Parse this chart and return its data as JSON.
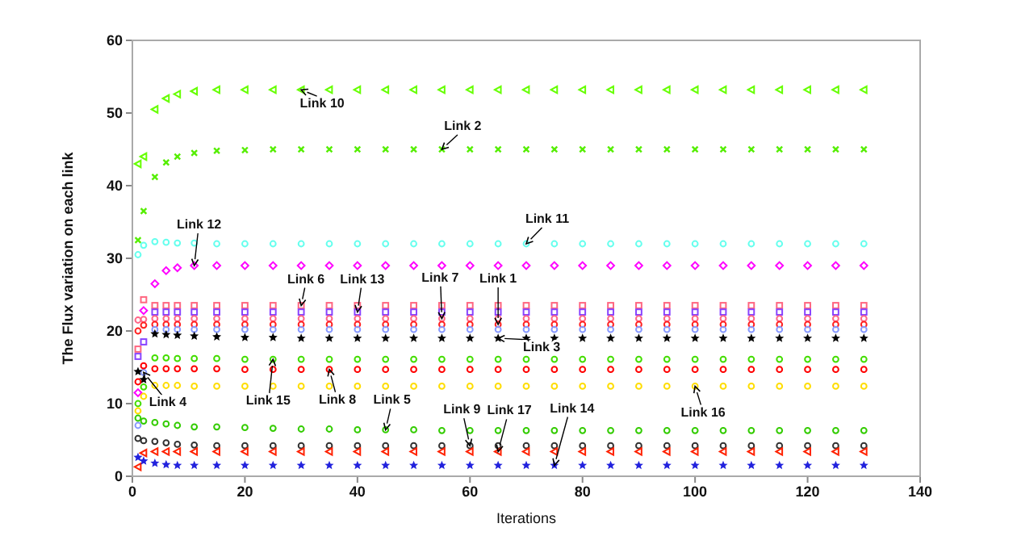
{
  "chart_data": {
    "type": "scatter",
    "xlabel": "Iterations",
    "ylabel": "The Flux variation on each link",
    "x": [
      1,
      2,
      4,
      6,
      8,
      11,
      15,
      20,
      25,
      30,
      35,
      40,
      45,
      50,
      55,
      60,
      65,
      70,
      75,
      80,
      85,
      90,
      95,
      100,
      105,
      110,
      115,
      120,
      125,
      130
    ],
    "xlim": [
      0,
      140
    ],
    "xticks": [
      0,
      20,
      40,
      60,
      80,
      100,
      120,
      140
    ],
    "ylim": [
      0,
      60
    ],
    "yticks": [
      0,
      10,
      20,
      30,
      40,
      50,
      60
    ],
    "grid": false,
    "series": [
      {
        "color": "#66ff00",
        "marker": "triangle",
        "values": [
          43,
          44,
          50.5,
          52,
          52.6,
          53,
          53.2,
          53.2,
          53.2,
          53.2,
          53.2,
          53.2,
          53.2,
          53.2,
          53.2,
          53.2,
          53.2,
          53.2,
          53.2,
          53.2,
          53.2,
          53.2,
          53.2,
          53.2,
          53.2,
          53.2,
          53.2,
          53.2,
          53.2,
          53.2
        ]
      },
      {
        "color": "#55ee00",
        "marker": "cross",
        "values": [
          32.5,
          36.5,
          41.2,
          43.2,
          44,
          44.5,
          44.8,
          44.9,
          45,
          45,
          45,
          45,
          45,
          45,
          45,
          45,
          45,
          45,
          45,
          45,
          45,
          45,
          45,
          45,
          45,
          45,
          45,
          45,
          45,
          45
        ]
      },
      {
        "color": "#66ffee",
        "marker": "circle",
        "values": [
          30.5,
          31.8,
          32.3,
          32.2,
          32.1,
          32.1,
          32,
          32,
          32,
          32,
          32,
          32,
          32,
          32,
          32,
          32,
          32,
          32,
          32,
          32,
          32,
          32,
          32,
          32,
          32,
          32,
          32,
          32,
          32,
          32
        ]
      },
      {
        "color": "#ff00ff",
        "marker": "diamond",
        "values": [
          11.5,
          22.8,
          26.5,
          28.3,
          28.7,
          29,
          29,
          29,
          29,
          29,
          29,
          29,
          29,
          29,
          29,
          29,
          29,
          29,
          29,
          29,
          29,
          29,
          29,
          29,
          29,
          29,
          29,
          29,
          29,
          29
        ]
      },
      {
        "color": "#ff6680",
        "marker": "square",
        "values": [
          17.5,
          24.3,
          23.5,
          23.5,
          23.5,
          23.5,
          23.5,
          23.5,
          23.5,
          23.5,
          23.5,
          23.5,
          23.5,
          23.5,
          23.5,
          23.5,
          23.5,
          23.5,
          23.5,
          23.5,
          23.5,
          23.5,
          23.5,
          23.5,
          23.5,
          23.5,
          23.5,
          23.5,
          23.5,
          23.5
        ]
      },
      {
        "color": "#8844ff",
        "marker": "square",
        "values": [
          16.5,
          18.5,
          22.6,
          22.6,
          22.6,
          22.6,
          22.6,
          22.6,
          22.6,
          22.6,
          22.6,
          22.6,
          22.6,
          22.6,
          22.6,
          22.6,
          22.6,
          22.6,
          22.6,
          22.6,
          22.6,
          22.6,
          22.6,
          22.6,
          22.6,
          22.6,
          22.6,
          22.6,
          22.6,
          22.6
        ]
      },
      {
        "color": "#ff6688",
        "marker": "circle",
        "values": [
          21.5,
          21.6,
          21.7,
          21.7,
          21.7,
          21.7,
          21.7,
          21.7,
          21.7,
          21.7,
          21.7,
          21.7,
          21.7,
          21.7,
          21.7,
          21.7,
          21.7,
          21.7,
          21.7,
          21.7,
          21.7,
          21.7,
          21.7,
          21.7,
          21.7,
          21.7,
          21.7,
          21.7,
          21.7,
          21.7
        ]
      },
      {
        "color": "#ff2222",
        "marker": "circle",
        "values": [
          20,
          20.8,
          20.9,
          20.9,
          20.9,
          20.9,
          20.9,
          20.9,
          20.9,
          20.9,
          20.9,
          20.9,
          20.9,
          20.9,
          20.9,
          20.9,
          20.9,
          20.9,
          20.9,
          20.9,
          20.9,
          20.9,
          20.9,
          20.9,
          20.9,
          20.9,
          20.9,
          20.9,
          20.9,
          20.9
        ]
      },
      {
        "color": "#8899ff",
        "marker": "circle",
        "values": [
          7,
          14.3,
          20.2,
          20.2,
          20.2,
          20.2,
          20.2,
          20.2,
          20.2,
          20.2,
          20.2,
          20.2,
          20.2,
          20.2,
          20.2,
          20.2,
          20.2,
          20.2,
          20.2,
          20.2,
          20.2,
          20.2,
          20.2,
          20.2,
          20.2,
          20.2,
          20.2,
          20.2,
          20.2,
          20.2
        ]
      },
      {
        "color": "#000000",
        "marker": "star",
        "values": [
          14.4,
          13.3,
          19.6,
          19.5,
          19.4,
          19.3,
          19.2,
          19.1,
          19.1,
          19,
          19,
          19,
          19,
          19,
          19,
          19,
          19,
          19,
          19,
          19,
          19,
          19,
          19,
          19,
          19,
          19,
          19,
          19,
          19,
          19
        ]
      },
      {
        "color": "#44dd00",
        "marker": "circle",
        "values": [
          10,
          12.3,
          16.3,
          16.3,
          16.2,
          16.2,
          16.2,
          16.1,
          16.1,
          16.1,
          16.1,
          16.1,
          16.1,
          16.1,
          16.1,
          16.1,
          16.1,
          16.1,
          16.1,
          16.1,
          16.1,
          16.1,
          16.1,
          16.1,
          16.1,
          16.1,
          16.1,
          16.1,
          16.1,
          16.1
        ]
      },
      {
        "color": "#ff0000",
        "marker": "circle",
        "values": [
          13,
          15.2,
          14.8,
          14.8,
          14.8,
          14.8,
          14.8,
          14.7,
          14.7,
          14.7,
          14.7,
          14.7,
          14.7,
          14.7,
          14.7,
          14.7,
          14.7,
          14.7,
          14.7,
          14.7,
          14.7,
          14.7,
          14.7,
          14.7,
          14.7,
          14.7,
          14.7,
          14.7,
          14.7,
          14.7
        ]
      },
      {
        "color": "#ffdd00",
        "marker": "circle",
        "values": [
          9,
          11,
          12.5,
          12.5,
          12.5,
          12.4,
          12.4,
          12.4,
          12.4,
          12.4,
          12.4,
          12.4,
          12.4,
          12.4,
          12.4,
          12.4,
          12.4,
          12.4,
          12.4,
          12.4,
          12.4,
          12.4,
          12.4,
          12.4,
          12.4,
          12.4,
          12.4,
          12.4,
          12.4,
          12.4
        ]
      },
      {
        "color": "#33cc00",
        "marker": "circle",
        "values": [
          8,
          7.6,
          7.4,
          7.2,
          7,
          6.8,
          6.8,
          6.7,
          6.6,
          6.5,
          6.5,
          6.4,
          6.4,
          6.4,
          6.3,
          6.3,
          6.3,
          6.3,
          6.3,
          6.3,
          6.3,
          6.3,
          6.3,
          6.3,
          6.3,
          6.3,
          6.3,
          6.3,
          6.3,
          6.3
        ]
      },
      {
        "color": "#333333",
        "marker": "circle",
        "values": [
          5.2,
          4.9,
          4.8,
          4.6,
          4.4,
          4.3,
          4.2,
          4.2,
          4.2,
          4.2,
          4.2,
          4.2,
          4.2,
          4.2,
          4.2,
          4.2,
          4.2,
          4.2,
          4.2,
          4.2,
          4.2,
          4.2,
          4.2,
          4.2,
          4.2,
          4.2,
          4.2,
          4.2,
          4.2,
          4.2
        ]
      },
      {
        "color": "#ff2200",
        "marker": "triangle",
        "values": [
          1.3,
          3.2,
          3.4,
          3.4,
          3.4,
          3.4,
          3.4,
          3.4,
          3.4,
          3.4,
          3.4,
          3.4,
          3.4,
          3.4,
          3.4,
          3.4,
          3.4,
          3.4,
          3.4,
          3.4,
          3.4,
          3.4,
          3.4,
          3.4,
          3.4,
          3.4,
          3.4,
          3.4,
          3.4,
          3.4
        ]
      },
      {
        "color": "#2222dd",
        "marker": "star",
        "values": [
          2.6,
          2.1,
          1.8,
          1.6,
          1.5,
          1.5,
          1.5,
          1.5,
          1.5,
          1.5,
          1.5,
          1.5,
          1.5,
          1.5,
          1.5,
          1.5,
          1.5,
          1.5,
          1.5,
          1.5,
          1.5,
          1.5,
          1.5,
          1.5,
          1.5,
          1.5,
          1.5,
          1.5,
          1.5,
          1.5
        ]
      }
    ],
    "annotations": [
      {
        "text": "Link 10",
        "x": 30,
        "y": 53.2
      },
      {
        "text": "Link 2",
        "x": 55,
        "y": 45
      },
      {
        "text": "Link 11",
        "x": 70,
        "y": 32
      },
      {
        "text": "Link 12",
        "x": 11,
        "y": 29
      },
      {
        "text": "Link 6",
        "x": 30,
        "y": 23.5
      },
      {
        "text": "Link 13",
        "x": 40,
        "y": 22.6
      },
      {
        "text": "Link 7",
        "x": 55,
        "y": 21.7
      },
      {
        "text": "Link 1",
        "x": 65,
        "y": 20.9
      },
      {
        "text": "Link 3",
        "x": 65,
        "y": 19
      },
      {
        "text": "Link 15",
        "x": 25,
        "y": 16.1
      },
      {
        "text": "Link 8",
        "x": 35,
        "y": 14.7
      },
      {
        "text": "Link 4",
        "x": 2,
        "y": 14.3
      },
      {
        "text": "Link 5",
        "x": 45,
        "y": 6.4
      },
      {
        "text": "Link 9",
        "x": 60,
        "y": 4.2
      },
      {
        "text": "Link 17",
        "x": 65,
        "y": 3.4
      },
      {
        "text": "Link 14",
        "x": 75,
        "y": 1.5
      },
      {
        "text": "Link 16",
        "x": 100,
        "y": 12.4
      }
    ]
  }
}
